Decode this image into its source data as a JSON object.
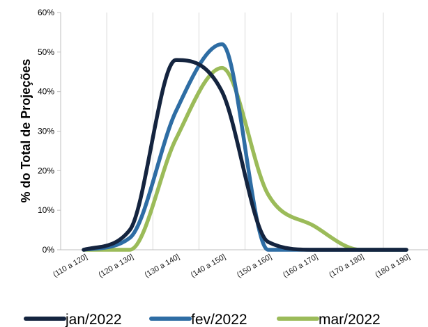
{
  "chart_data": {
    "type": "line",
    "title": "",
    "xlabel": "",
    "ylabel": "% do Total de Projeções",
    "categories": [
      "(110 a 120]",
      "(120 a 130]",
      "(130 a 140]",
      "(140 a 150]",
      "(150 a 160]",
      "(160 a 170]",
      "(170 a 180]",
      "(180 a 190]"
    ],
    "ylim": [
      0,
      60
    ],
    "yticks": [
      "0%",
      "10%",
      "20%",
      "30%",
      "40%",
      "50%",
      "60%"
    ],
    "grid": "vertical",
    "legend": "bottom",
    "series": [
      {
        "name": "jan/2022",
        "color": "#14243f",
        "values": [
          0,
          5,
          48,
          40,
          2,
          0,
          0,
          0
        ]
      },
      {
        "name": "fev/2022",
        "color": "#2e6da4",
        "values": [
          0,
          3,
          35,
          52,
          0,
          0,
          0,
          0
        ]
      },
      {
        "name": "mar/2022",
        "color": "#9bbb59",
        "values": [
          0,
          0,
          28,
          46,
          14,
          6,
          0,
          0
        ]
      }
    ]
  }
}
